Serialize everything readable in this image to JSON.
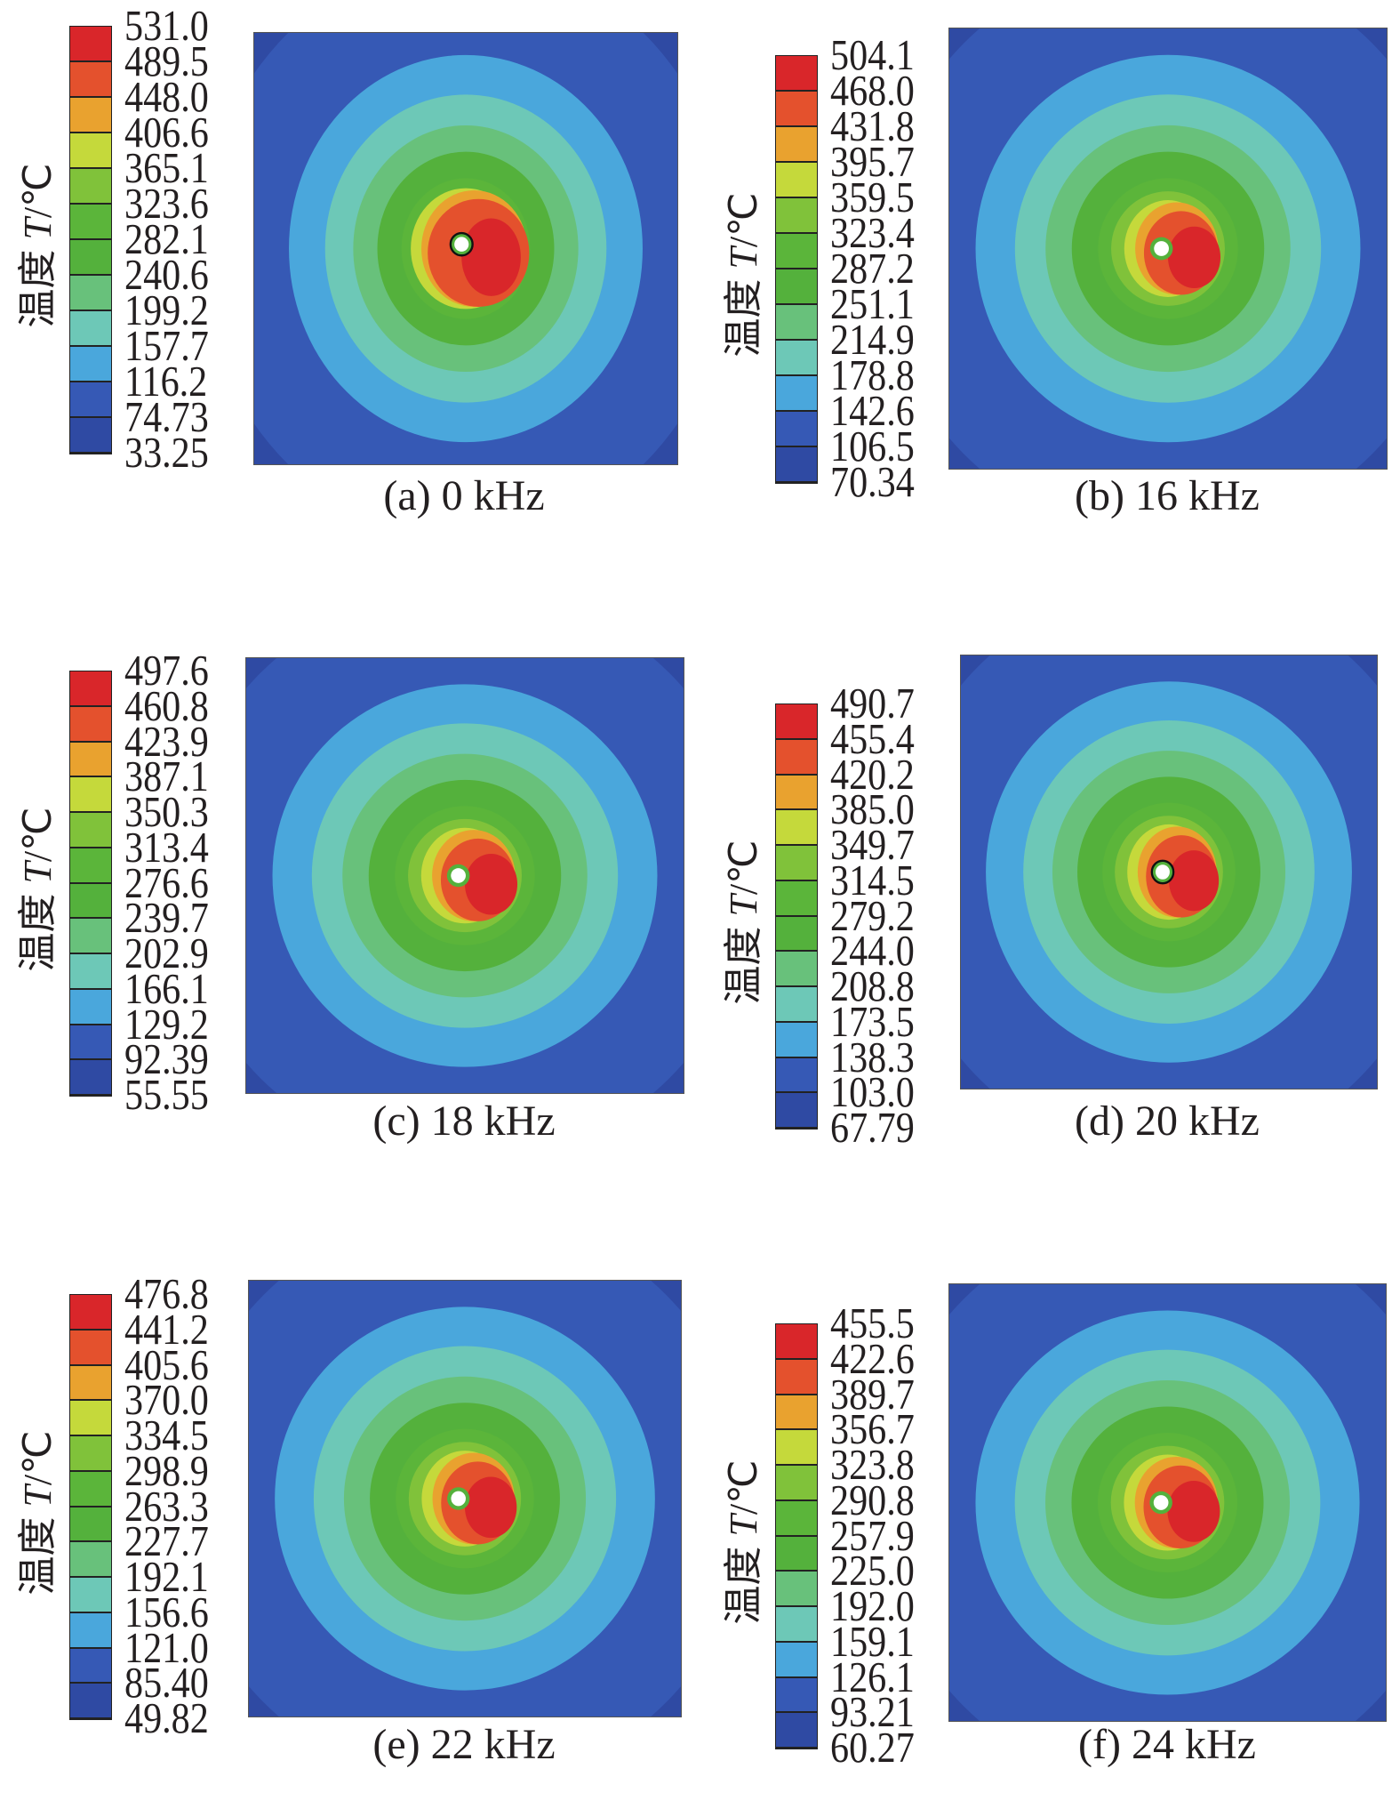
{
  "axis_label_prefix": "温度",
  "axis_label_var": "T",
  "axis_label_unit": "/℃",
  "colors": [
    "#d9262a",
    "#e4512d",
    "#e9a22f",
    "#c5d93b",
    "#80c23a",
    "#5bb53a",
    "#54b13c",
    "#68c17b",
    "#6dc8b7",
    "#4aa7dc",
    "#3659b5",
    "#2f4aa3"
  ],
  "chart_data": {
    "type": "heatmap",
    "panels": [
      {
        "caption": "(a) 0 kHz",
        "levels": [
          "531.0",
          "489.5",
          "448.0",
          "406.6",
          "365.1",
          "323.6",
          "282.1",
          "240.6",
          "199.2",
          "157.7",
          "116.2",
          "74.73",
          "33.25"
        ]
      },
      {
        "caption": "(b) 16 kHz",
        "levels": [
          "504.1",
          "468.0",
          "431.8",
          "395.7",
          "359.5",
          "323.4",
          "287.2",
          "251.1",
          "214.9",
          "178.8",
          "142.6",
          "106.5",
          "70.34"
        ]
      },
      {
        "caption": "(c) 18 kHz",
        "levels": [
          "497.6",
          "460.8",
          "423.9",
          "387.1",
          "350.3",
          "313.4",
          "276.6",
          "239.7",
          "202.9",
          "166.1",
          "129.2",
          "92.39",
          "55.55"
        ]
      },
      {
        "caption": "(d) 20 kHz",
        "levels": [
          "490.7",
          "455.4",
          "420.2",
          "385.0",
          "349.7",
          "314.5",
          "279.2",
          "244.0",
          "208.8",
          "173.5",
          "138.3",
          "103.0",
          "67.79"
        ]
      },
      {
        "caption": "(e) 22 kHz",
        "levels": [
          "476.8",
          "441.2",
          "405.6",
          "370.0",
          "334.5",
          "298.9",
          "263.3",
          "227.7",
          "192.1",
          "156.6",
          "121.0",
          "85.40",
          "49.82"
        ]
      },
      {
        "caption": "(f) 24 kHz",
        "levels": [
          "455.5",
          "422.6",
          "389.7",
          "356.7",
          "323.8",
          "290.8",
          "257.9",
          "225.0",
          "192.0",
          "159.1",
          "126.1",
          "93.21",
          "60.27"
        ]
      }
    ]
  }
}
